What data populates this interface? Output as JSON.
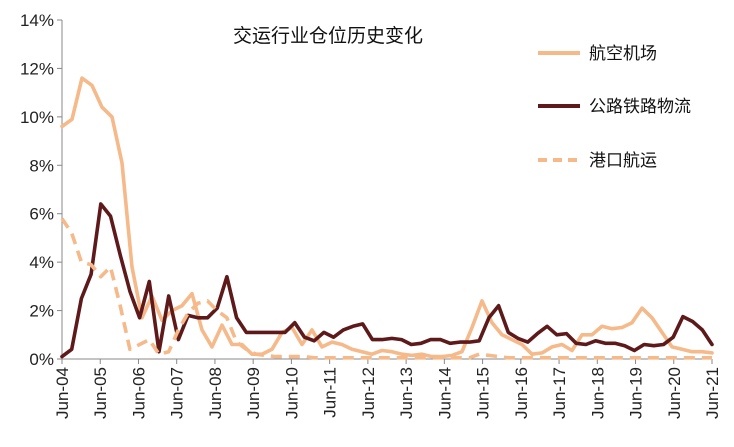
{
  "chart_data": {
    "type": "line",
    "title": "交运行业仓位历史变化",
    "xlabel": "",
    "ylabel": "",
    "ylim": [
      0,
      14
    ],
    "y_ticks": [
      "0%",
      "2%",
      "4%",
      "6%",
      "8%",
      "10%",
      "12%",
      "14%"
    ],
    "x_ticks": [
      "Jun-04",
      "Jun-05",
      "Jun-06",
      "Jun-07",
      "Jun-08",
      "Jun-09",
      "Jun-10",
      "Jun-11",
      "Jun-12",
      "Jun-13",
      "Jun-14",
      "Jun-15",
      "Jun-16",
      "Jun-17",
      "Jun-18",
      "Jun-19",
      "Jun-20",
      "Jun-21"
    ],
    "legend_position": "top-right",
    "grid": false,
    "x_unit": "quarter index from Jun-04 (4 per year)",
    "series": [
      {
        "name": "航空机场",
        "color": "#F5B98A",
        "style": "solid",
        "values": [
          9.6,
          9.9,
          11.6,
          11.3,
          10.4,
          10.0,
          8.1,
          3.8,
          1.7,
          2.6,
          1.6,
          2.0,
          2.2,
          2.7,
          1.2,
          0.5,
          1.4,
          0.6,
          0.6,
          0.2,
          0.2,
          0.4,
          1.1,
          1.3,
          0.6,
          1.2,
          0.5,
          0.7,
          0.6,
          0.4,
          0.3,
          0.2,
          0.35,
          0.3,
          0.2,
          0.15,
          0.2,
          0.1,
          0.1,
          0.15,
          0.3,
          1.3,
          2.4,
          1.5,
          1.0,
          0.8,
          0.6,
          0.2,
          0.25,
          0.5,
          0.6,
          0.35,
          1.0,
          1.0,
          1.35,
          1.25,
          1.3,
          1.5,
          2.1,
          1.7,
          1.1,
          0.5,
          0.4,
          0.3,
          0.3,
          0.25
        ]
      },
      {
        "name": "公路铁路物流",
        "color": "#5E1A1A",
        "style": "solid",
        "values": [
          0.1,
          0.4,
          2.5,
          3.5,
          6.4,
          5.9,
          4.3,
          2.8,
          1.7,
          3.2,
          0.3,
          2.6,
          0.8,
          1.8,
          1.7,
          1.7,
          2.1,
          3.4,
          1.7,
          1.1,
          1.1,
          1.1,
          1.1,
          1.1,
          1.5,
          0.9,
          0.75,
          1.1,
          0.9,
          1.2,
          1.35,
          1.45,
          0.8,
          0.8,
          0.85,
          0.8,
          0.6,
          0.65,
          0.8,
          0.8,
          0.65,
          0.7,
          0.7,
          0.75,
          1.7,
          2.2,
          1.1,
          0.85,
          0.7,
          1.05,
          1.35,
          1.0,
          1.05,
          0.65,
          0.6,
          0.75,
          0.65,
          0.65,
          0.55,
          0.35,
          0.6,
          0.55,
          0.6,
          0.9,
          1.75,
          1.55,
          1.2,
          0.6
        ]
      },
      {
        "name": "港口航运",
        "color": "#F5B98A",
        "style": "dashed",
        "values": [
          5.8,
          5.2,
          4.0,
          3.9,
          3.4,
          3.8,
          2.2,
          0.4,
          0.6,
          0.8,
          0.2,
          0.3,
          1.2,
          1.9,
          2.3,
          2.4,
          2.0,
          1.7,
          0.7,
          0.4,
          0.2,
          0.15,
          0.1,
          0.1,
          0.1,
          0.1,
          0.05,
          0.05,
          0.05,
          0.05,
          0.05,
          0.05,
          0.05,
          0.05,
          0.05,
          0.05,
          0.05,
          0.05,
          0.05,
          0.05,
          0.05,
          0.05,
          0.05,
          0.2,
          0.15,
          0.1,
          0.05,
          0.05,
          0.05,
          0.05,
          0.05,
          0.05,
          0.05,
          0.05,
          0.05,
          0.05,
          0.05,
          0.05,
          0.05,
          0.05,
          0.05,
          0.05,
          0.05,
          0.05,
          0.05,
          0.05,
          0.05,
          0.05
        ]
      }
    ]
  }
}
